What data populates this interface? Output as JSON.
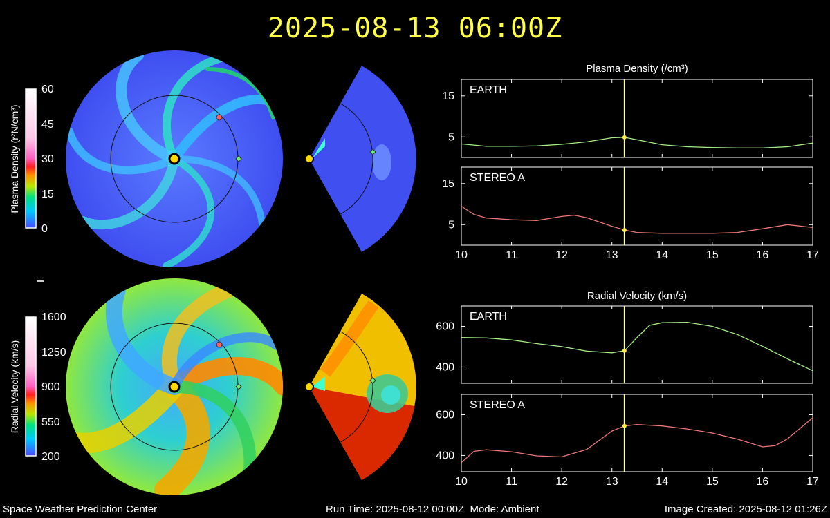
{
  "header": {
    "timestamp": "2025-08-13 06:00Z"
  },
  "footer": {
    "center_name": "Space Weather Prediction Center",
    "run_time": "Run Time: 2025-08-12 00:00Z",
    "mode": "Mode: Ambient",
    "image_created": "Image Created: 2025-08-12 01:26Z"
  },
  "colorbars": {
    "density": {
      "label": "Plasma Density (r²N/cm³)",
      "ticks": [
        "60",
        "45",
        "30",
        "15",
        "0"
      ]
    },
    "velocity": {
      "label": "Radial Velocity (km/s)",
      "ticks": [
        "1600",
        "1250",
        "900",
        "550",
        "200"
      ]
    }
  },
  "colors": {
    "title": "#ffff44",
    "earth_line": "#a8ee88",
    "stereo_line": "#ee7777",
    "cursor": "#ffffaa",
    "frame": "#ffffff"
  },
  "chart_data": [
    {
      "type": "line",
      "title": "Plasma Density (/cm³)",
      "xlabel": "",
      "ylabel": "",
      "xlim": [
        10,
        17
      ],
      "x_ticks": [
        "10",
        "11",
        "12",
        "13",
        "14",
        "15",
        "16",
        "17"
      ],
      "cursor_x": 13.25,
      "panels": [
        {
          "label": "EARTH",
          "ylim": [
            0,
            19
          ],
          "y_ticks": [
            5,
            15
          ],
          "series": {
            "x": [
              10,
              10.5,
              11,
              11.5,
              12,
              12.5,
              13,
              13.25,
              13.5,
              14,
              14.5,
              15,
              15.5,
              16,
              16.5,
              17
            ],
            "y": [
              3.3,
              2.7,
              2.7,
              2.8,
              3.2,
              3.8,
              4.8,
              4.9,
              4.3,
              3.1,
              2.6,
              2.4,
              2.3,
              2.3,
              2.6,
              3.5
            ]
          }
        },
        {
          "label": "STEREO A",
          "ylim": [
            0,
            19
          ],
          "y_ticks": [
            5,
            15
          ],
          "series": {
            "x": [
              10,
              10.25,
              10.5,
              11,
              11.5,
              12,
              12.25,
              12.5,
              13,
              13.25,
              13.5,
              14,
              14.5,
              15,
              15.5,
              16,
              16.5,
              17
            ],
            "y": [
              9.5,
              7.5,
              6.6,
              6.2,
              6.0,
              7.0,
              7.3,
              6.7,
              4.6,
              3.7,
              3.1,
              2.9,
              2.9,
              2.9,
              3.1,
              4.0,
              5.0,
              4.3
            ]
          }
        }
      ]
    },
    {
      "type": "line",
      "title": "Radial Velocity (km/s)",
      "xlabel": "",
      "ylabel": "",
      "xlim": [
        10,
        17
      ],
      "x_ticks": [
        "10",
        "11",
        "12",
        "13",
        "14",
        "15",
        "16",
        "17"
      ],
      "cursor_x": 13.25,
      "panels": [
        {
          "label": "EARTH",
          "ylim": [
            320,
            700
          ],
          "y_ticks": [
            400,
            600
          ],
          "series": {
            "x": [
              10,
              10.5,
              11,
              11.5,
              12,
              12.5,
              13,
              13.25,
              13.5,
              13.75,
              14,
              14.5,
              15,
              15.5,
              16,
              16.5,
              17
            ],
            "y": [
              545,
              543,
              533,
              515,
              500,
              478,
              470,
              480,
              545,
              605,
              618,
              620,
              600,
              560,
              502,
              440,
              382
            ]
          }
        },
        {
          "label": "STEREO A",
          "ylim": [
            320,
            700
          ],
          "y_ticks": [
            400,
            600
          ],
          "series": {
            "x": [
              10,
              10.25,
              10.5,
              11,
              11.5,
              12,
              12.5,
              13,
              13.25,
              13.5,
              14,
              14.5,
              15,
              15.5,
              16,
              16.25,
              16.5,
              17
            ],
            "y": [
              365,
              420,
              428,
              418,
              398,
              393,
              430,
              520,
              545,
              552,
              545,
              530,
              510,
              480,
              442,
              448,
              482,
              585
            ]
          }
        }
      ]
    }
  ]
}
